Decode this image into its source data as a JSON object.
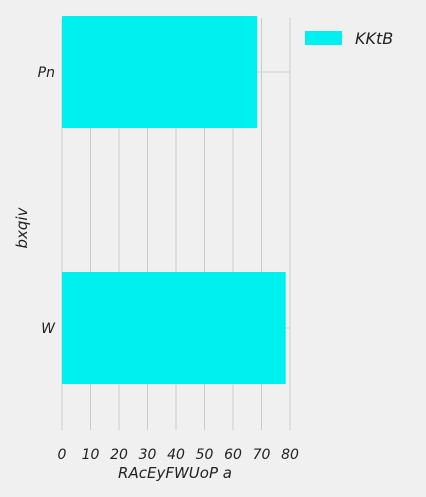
{
  "chart_data": {
    "type": "bar",
    "orientation": "horizontal",
    "categories": [
      "Pn",
      "W"
    ],
    "series": [
      {
        "name": "KKtB",
        "values": [
          68.5,
          78.5
        ],
        "color": "#00f0f0"
      }
    ],
    "xlabel": "RAcEyFWUoP a",
    "ylabel": "bxqiv",
    "xlim": [
      0,
      80
    ],
    "xticks": [
      0,
      10,
      20,
      30,
      40,
      50,
      60,
      70,
      80
    ],
    "grid": true,
    "legend_position": "top-right"
  }
}
